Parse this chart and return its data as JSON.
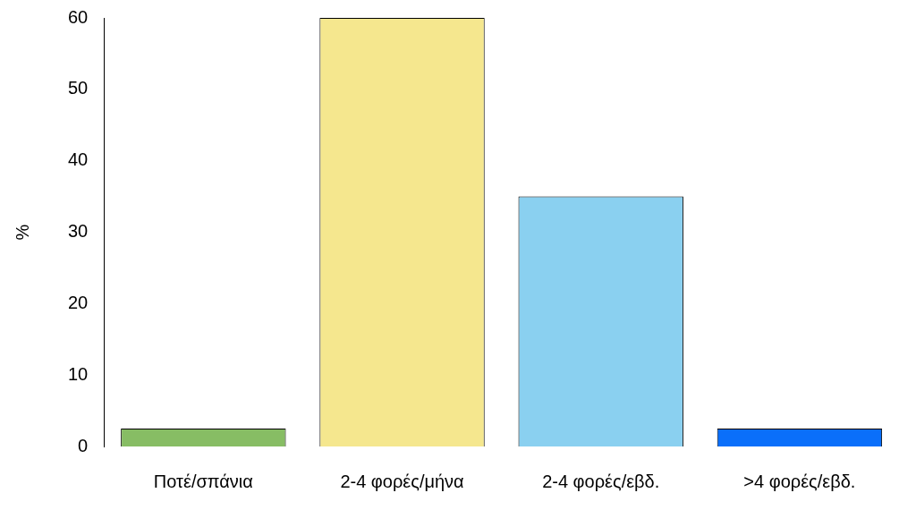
{
  "chart_data": {
    "type": "bar",
    "ylabel": "%",
    "categories": [
      "Ποτέ/σπάνια",
      "2-4 φορές/μήνα",
      "2-4 φορές/εβδ.",
      ">4 φορές/εβδ."
    ],
    "values": [
      2.5,
      60,
      35,
      2.5
    ],
    "colors": [
      "#87bd64",
      "#f5e78e",
      "#8ad0f0",
      "#0a6ffa"
    ],
    "ylim": [
      0,
      60
    ],
    "yticks": [
      0,
      10,
      20,
      30,
      40,
      50,
      60
    ],
    "grid": false,
    "legend": false
  }
}
